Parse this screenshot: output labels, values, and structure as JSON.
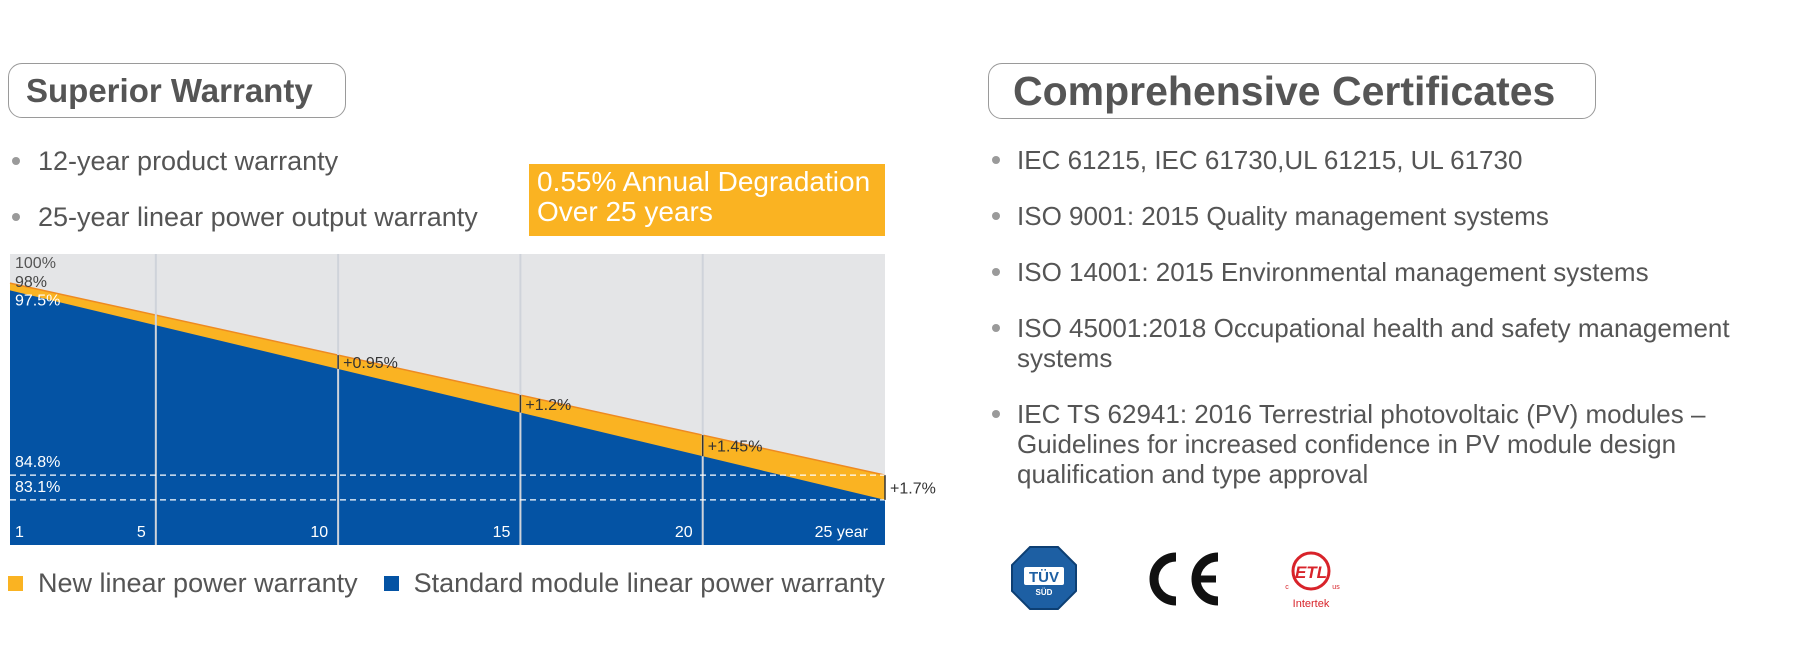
{
  "warranty": {
    "title": "Superior Warranty",
    "bullets": [
      "12-year product warranty",
      "25-year linear power output warranty"
    ],
    "degradation_box": [
      "0.55% Annual Degradation",
      "Over 25 years"
    ]
  },
  "certificates": {
    "title": "Comprehensive Certificates",
    "items": [
      [
        "IEC 61215, IEC 61730,UL 61215, UL 61730"
      ],
      [
        "ISO 9001: 2015 Quality management systems"
      ],
      [
        "ISO 14001: 2015 Environmental management systems"
      ],
      [
        "ISO 45001:2018 Occupational health and safety management",
        "systems"
      ],
      [
        "IEC TS 62941: 2016 Terrestrial photovoltaic (PV) modules –",
        "Guidelines for increased confidence in PV module design",
        "qualification and type approval"
      ]
    ],
    "logos": [
      {
        "icon": "tuv-sud-logo-icon",
        "text": "TÜV",
        "subtext": "SÜD"
      },
      {
        "icon": "ce-mark-icon",
        "text": "CE"
      },
      {
        "icon": "etl-intertek-logo-icon",
        "text": "ETL",
        "subtext": "Intertek",
        "c": "c",
        "us": "us"
      }
    ]
  },
  "colors": {
    "new": "#fab322",
    "standard": "#0453a4",
    "background_band": "#e4e5e7",
    "orange_line": "#ee8a21"
  },
  "chart_data": {
    "type": "area",
    "x_range": [
      1,
      25
    ],
    "y_range": [
      80,
      100
    ],
    "x_ticks": [
      "1",
      "5",
      "10",
      "15",
      "20",
      "25 year"
    ],
    "x_tick_values": [
      1,
      5,
      10,
      15,
      20,
      25
    ],
    "grid_x": [
      5,
      10,
      15,
      20
    ],
    "series": [
      {
        "name": "New linear power warranty",
        "color": "#fab322",
        "x": [
          1,
          25
        ],
        "y": [
          98,
          84.8
        ]
      },
      {
        "name": "Standard module linear power warranty",
        "color": "#0453a4",
        "x": [
          1,
          25
        ],
        "y": [
          97.5,
          83.1
        ]
      }
    ],
    "y_labels": [
      {
        "text": "100%",
        "value": 100
      },
      {
        "text": "98%",
        "value": 98
      },
      {
        "text": "97.5%",
        "value": 97.5
      },
      {
        "text": "84.8%",
        "value": 84.8
      },
      {
        "text": "83.1%",
        "value": 83.1
      }
    ],
    "reference_lines": [
      84.8,
      83.1
    ],
    "gap_annotations": [
      {
        "x": 10,
        "text": "+0.95%"
      },
      {
        "x": 15,
        "text": "+1.2%"
      },
      {
        "x": 20,
        "text": "+1.45%"
      },
      {
        "x": 25,
        "text": "+1.7%"
      }
    ]
  }
}
